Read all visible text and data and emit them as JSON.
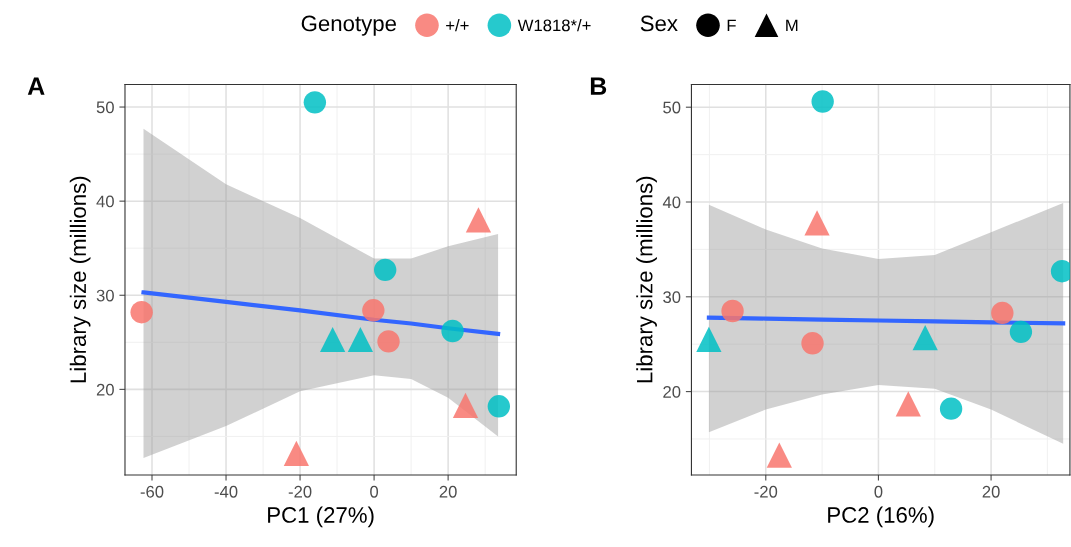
{
  "chart_data": [
    {
      "type": "scatter",
      "title": "A",
      "xlabel": "PC1 (27%)",
      "ylabel": "Library size (millions)",
      "legend_title": [
        "Genotype",
        "Sex"
      ],
      "legend": "top",
      "grid": true,
      "xlim": [
        -67.3,
        38.4
      ],
      "ylim": [
        10.9,
        52.4
      ],
      "xticks": [
        -60,
        -40,
        -20,
        0,
        20
      ],
      "yticks": [
        20,
        30,
        40,
        50
      ],
      "series": [
        {
          "type": "line",
          "color": "#3366ff",
          "marker": "none",
          "x": [
            -62.3,
            -40,
            -20,
            0,
            10,
            20,
            33.5
          ],
          "values": [
            30.3,
            29.3,
            28.4,
            27.4,
            27.0,
            26.5,
            25.9
          ],
          "lower": [
            12.7,
            16.1,
            19.8,
            21.5,
            21.1,
            19.1,
            15.0
          ],
          "upper": [
            47.7,
            41.8,
            38.2,
            33.9,
            33.9,
            35.2,
            36.5
          ]
        },
        {
          "name": "+/+",
          "color": "#f8766d",
          "marker": "circle",
          "x": [
            -62.8,
            -0.2,
            3.9
          ],
          "values": [
            28.2,
            28.4,
            25.1
          ]
        },
        {
          "color": "#f8766d",
          "marker": "triangle",
          "x": [
            28.2,
            24.7,
            -21.0
          ],
          "values": [
            38.0,
            18.3,
            13.2
          ]
        },
        {
          "name": "W1818*/+",
          "color": "#00bfc4",
          "marker": "circle",
          "x": [
            -16.0,
            3.0,
            21.2,
            33.7
          ],
          "values": [
            50.5,
            32.7,
            26.2,
            18.2
          ]
        },
        {
          "color": "#00bfc4",
          "marker": "triangle",
          "x": [
            -11.2,
            -3.7
          ],
          "values": [
            25.3,
            25.3
          ]
        },
        {
          "name": "F",
          "color": "#000000",
          "marker": "circle"
        },
        {
          "name": "M",
          "color": "#000000",
          "marker": "triangle"
        }
      ]
    },
    {
      "type": "scatter",
      "title": "B",
      "xlabel": "PC2 (16%)",
      "ylabel": "Library size (millions)",
      "legend": false,
      "grid": true,
      "xlim": [
        -33.2,
        34.0
      ],
      "ylim": [
        11.2,
        52.4
      ],
      "xticks": [
        -20,
        0,
        20
      ],
      "yticks": [
        20,
        30,
        40,
        50
      ],
      "series": [
        {
          "type": "line",
          "color": "#3366ff",
          "marker": "none",
          "x": [
            -30.1,
            -20,
            -10,
            0,
            10,
            20,
            32.8
          ],
          "values": [
            27.8,
            27.7,
            27.6,
            27.5,
            27.4,
            27.3,
            27.2
          ],
          "lower": [
            15.7,
            18.1,
            19.7,
            20.7,
            20.3,
            18.1,
            14.5
          ],
          "upper": [
            39.7,
            37.1,
            35.1,
            34.0,
            34.4,
            36.8,
            39.9
          ]
        },
        {
          "color": "#f8766d",
          "marker": "circle",
          "x": [
            -25.9,
            -11.7,
            22.0
          ],
          "values": [
            28.5,
            25.1,
            28.3
          ]
        },
        {
          "color": "#f8766d",
          "marker": "triangle",
          "x": [
            -10.9,
            5.3,
            -17.6
          ],
          "values": [
            37.8,
            18.7,
            13.3
          ]
        },
        {
          "color": "#00bfc4",
          "marker": "circle",
          "x": [
            -9.9,
            25.3,
            32.6,
            12.9
          ],
          "values": [
            50.6,
            26.3,
            32.7,
            18.2
          ]
        },
        {
          "color": "#00bfc4",
          "marker": "triangle",
          "x": [
            -30.1,
            8.3
          ],
          "values": [
            25.5,
            25.7
          ]
        }
      ]
    }
  ]
}
